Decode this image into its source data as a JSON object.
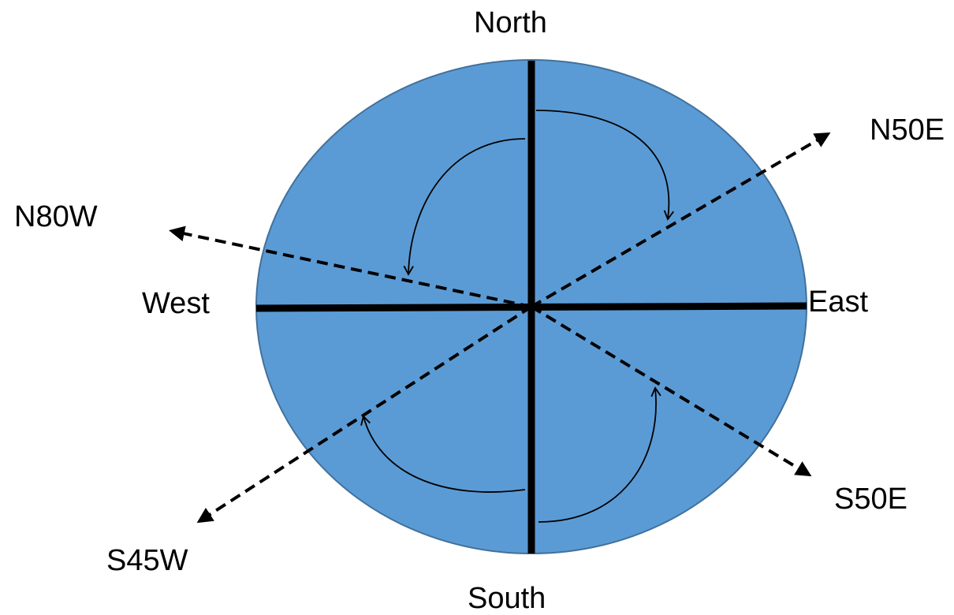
{
  "labels": {
    "north": "North",
    "south": "South",
    "east": "East",
    "west": "West",
    "n50e": "N50E",
    "n80w": "N80W",
    "s50e": "S50E",
    "s45w": "S45W"
  },
  "colors": {
    "disk_fill": "#5b9bd5",
    "disk_stroke": "#41719c",
    "lines": "#000000"
  },
  "bearings": [
    {
      "label": "N50E",
      "from": "North",
      "angle_deg": 50,
      "toward": "East"
    },
    {
      "label": "N80W",
      "from": "North",
      "angle_deg": 80,
      "toward": "West"
    },
    {
      "label": "S50E",
      "from": "South",
      "angle_deg": 50,
      "toward": "East"
    },
    {
      "label": "S45W",
      "from": "South",
      "angle_deg": 45,
      "toward": "West"
    }
  ]
}
